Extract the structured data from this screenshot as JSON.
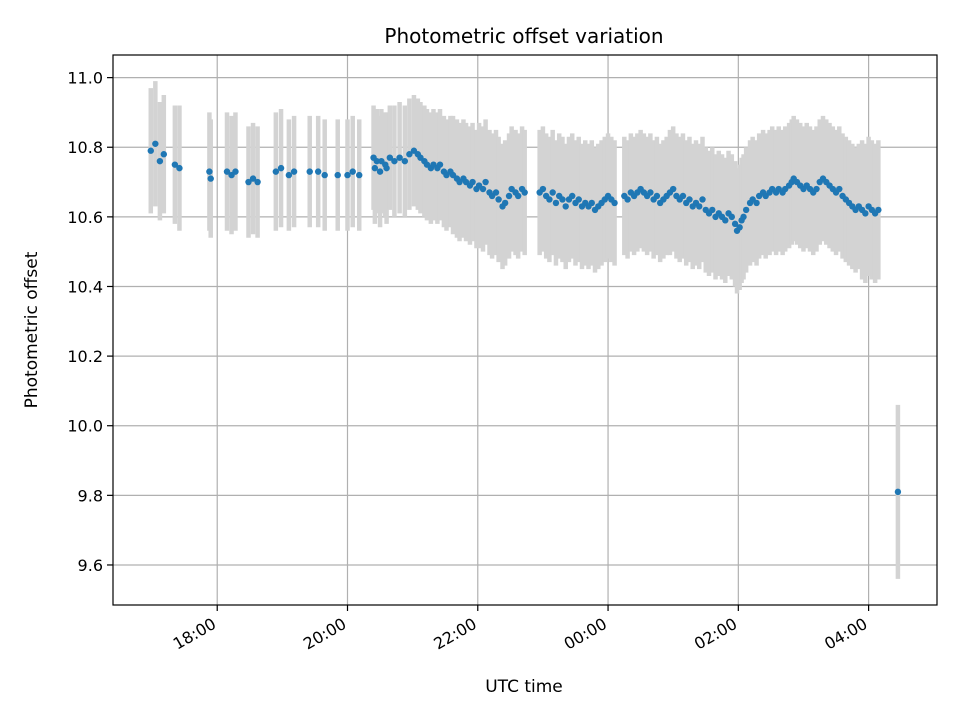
{
  "chart_data": {
    "type": "scatter",
    "title": "Photometric offset variation",
    "xlabel": "UTC time",
    "ylabel": "Photometric offset",
    "x_unit": "hours of UTC day (values ≥ 24 are next day)",
    "xlim": [
      16.4,
      29.05
    ],
    "ylim": [
      9.485,
      11.065
    ],
    "x_ticks": [
      18,
      20,
      22,
      24,
      26,
      28
    ],
    "x_tick_labels": [
      "18:00",
      "20:00",
      "22:00",
      "00:00",
      "02:00",
      "04:00"
    ],
    "y_ticks": [
      9.6,
      9.8,
      10.0,
      10.2,
      10.4,
      10.6,
      10.8,
      11.0
    ],
    "y_tick_labels": [
      "9.6",
      "9.8",
      "10.0",
      "10.2",
      "10.4",
      "10.6",
      "10.8",
      "11.0"
    ],
    "grid": true,
    "legend": "none",
    "colors": {
      "points": "#1f77b4",
      "errorbars": "#d3d3d3",
      "grid": "#b0b0b0"
    },
    "series": [
      {
        "points": [
          [
            16.98,
            10.79,
            0.18
          ],
          [
            17.05,
            10.81,
            0.18
          ],
          [
            17.12,
            10.76,
            0.17
          ],
          [
            17.18,
            10.78,
            0.17
          ],
          [
            17.35,
            10.75,
            0.17
          ],
          [
            17.42,
            10.74,
            0.18
          ],
          [
            17.88,
            10.73,
            0.17
          ],
          [
            17.9,
            10.71,
            0.17
          ],
          [
            18.15,
            10.73,
            0.17
          ],
          [
            18.22,
            10.72,
            0.17
          ],
          [
            18.28,
            10.73,
            0.17
          ],
          [
            18.48,
            10.7,
            0.16
          ],
          [
            18.55,
            10.71,
            0.16
          ],
          [
            18.62,
            10.7,
            0.16
          ],
          [
            18.9,
            10.73,
            0.17
          ],
          [
            18.98,
            10.74,
            0.17
          ],
          [
            19.1,
            10.72,
            0.16
          ],
          [
            19.18,
            10.73,
            0.16
          ],
          [
            19.42,
            10.73,
            0.16
          ],
          [
            19.55,
            10.73,
            0.16
          ],
          [
            19.65,
            10.72,
            0.16
          ],
          [
            19.85,
            10.72,
            0.16
          ],
          [
            20.0,
            10.72,
            0.16
          ],
          [
            20.08,
            10.73,
            0.16
          ],
          [
            20.18,
            10.72,
            0.16
          ],
          [
            20.42,
            10.74,
            0.16
          ],
          [
            20.5,
            10.73,
            0.16
          ],
          [
            20.6,
            10.74,
            0.16
          ],
          [
            20.4,
            10.77,
            0.15
          ],
          [
            20.45,
            10.76,
            0.15
          ],
          [
            20.52,
            10.76,
            0.15
          ],
          [
            20.58,
            10.75,
            0.15
          ],
          [
            20.65,
            10.77,
            0.15
          ],
          [
            20.72,
            10.76,
            0.16
          ],
          [
            20.8,
            10.77,
            0.16
          ],
          [
            20.88,
            10.76,
            0.16
          ],
          [
            20.95,
            10.78,
            0.16
          ],
          [
            21.02,
            10.79,
            0.16
          ],
          [
            21.08,
            10.78,
            0.16
          ],
          [
            21.12,
            10.77,
            0.16
          ],
          [
            21.18,
            10.76,
            0.16
          ],
          [
            21.22,
            10.75,
            0.16
          ],
          [
            21.28,
            10.74,
            0.16
          ],
          [
            21.32,
            10.75,
            0.16
          ],
          [
            21.38,
            10.74,
            0.16
          ],
          [
            21.42,
            10.75,
            0.16
          ],
          [
            21.48,
            10.73,
            0.16
          ],
          [
            21.52,
            10.72,
            0.16
          ],
          [
            21.58,
            10.73,
            0.16
          ],
          [
            21.62,
            10.72,
            0.17
          ],
          [
            21.68,
            10.71,
            0.17
          ],
          [
            21.72,
            10.7,
            0.17
          ],
          [
            21.78,
            10.71,
            0.17
          ],
          [
            21.82,
            10.7,
            0.17
          ],
          [
            21.88,
            10.69,
            0.17
          ],
          [
            21.92,
            10.7,
            0.17
          ],
          [
            21.98,
            10.68,
            0.17
          ],
          [
            22.02,
            10.69,
            0.18
          ],
          [
            22.08,
            10.68,
            0.18
          ],
          [
            22.12,
            10.7,
            0.18
          ],
          [
            22.18,
            10.67,
            0.18
          ],
          [
            22.22,
            10.66,
            0.18
          ],
          [
            22.28,
            10.67,
            0.18
          ],
          [
            22.32,
            10.65,
            0.18
          ],
          [
            22.38,
            10.63,
            0.18
          ],
          [
            22.42,
            10.64,
            0.18
          ],
          [
            22.48,
            10.66,
            0.18
          ],
          [
            22.52,
            10.68,
            0.18
          ],
          [
            22.58,
            10.67,
            0.18
          ],
          [
            22.62,
            10.66,
            0.18
          ],
          [
            22.68,
            10.68,
            0.18
          ],
          [
            22.72,
            10.67,
            0.18
          ],
          [
            22.95,
            10.67,
            0.18
          ],
          [
            23.0,
            10.68,
            0.18
          ],
          [
            23.05,
            10.66,
            0.18
          ],
          [
            23.1,
            10.65,
            0.18
          ],
          [
            23.15,
            10.67,
            0.18
          ],
          [
            23.2,
            10.64,
            0.18
          ],
          [
            23.25,
            10.66,
            0.18
          ],
          [
            23.3,
            10.65,
            0.18
          ],
          [
            23.35,
            10.63,
            0.18
          ],
          [
            23.4,
            10.65,
            0.18
          ],
          [
            23.45,
            10.66,
            0.18
          ],
          [
            23.5,
            10.64,
            0.18
          ],
          [
            23.55,
            10.65,
            0.18
          ],
          [
            23.6,
            10.63,
            0.18
          ],
          [
            23.65,
            10.64,
            0.18
          ],
          [
            23.7,
            10.63,
            0.18
          ],
          [
            23.75,
            10.64,
            0.18
          ],
          [
            23.8,
            10.62,
            0.18
          ],
          [
            23.85,
            10.63,
            0.18
          ],
          [
            23.9,
            10.64,
            0.18
          ],
          [
            23.95,
            10.65,
            0.18
          ],
          [
            24.0,
            10.66,
            0.18
          ],
          [
            24.05,
            10.65,
            0.18
          ],
          [
            24.1,
            10.64,
            0.18
          ],
          [
            24.25,
            10.66,
            0.17
          ],
          [
            24.3,
            10.65,
            0.17
          ],
          [
            24.35,
            10.67,
            0.17
          ],
          [
            24.4,
            10.66,
            0.17
          ],
          [
            24.45,
            10.67,
            0.17
          ],
          [
            24.5,
            10.68,
            0.17
          ],
          [
            24.55,
            10.67,
            0.17
          ],
          [
            24.6,
            10.66,
            0.17
          ],
          [
            24.65,
            10.67,
            0.17
          ],
          [
            24.7,
            10.65,
            0.17
          ],
          [
            24.75,
            10.66,
            0.17
          ],
          [
            24.8,
            10.64,
            0.17
          ],
          [
            24.85,
            10.65,
            0.17
          ],
          [
            24.9,
            10.66,
            0.17
          ],
          [
            24.95,
            10.67,
            0.18
          ],
          [
            25.0,
            10.68,
            0.18
          ],
          [
            25.05,
            10.66,
            0.18
          ],
          [
            25.1,
            10.65,
            0.18
          ],
          [
            25.15,
            10.66,
            0.18
          ],
          [
            25.2,
            10.64,
            0.18
          ],
          [
            25.25,
            10.65,
            0.18
          ],
          [
            25.3,
            10.63,
            0.18
          ],
          [
            25.35,
            10.64,
            0.18
          ],
          [
            25.4,
            10.63,
            0.18
          ],
          [
            25.45,
            10.65,
            0.18
          ],
          [
            25.5,
            10.62,
            0.18
          ],
          [
            25.55,
            10.61,
            0.18
          ],
          [
            25.6,
            10.62,
            0.18
          ],
          [
            25.65,
            10.6,
            0.18
          ],
          [
            25.7,
            10.61,
            0.18
          ],
          [
            25.75,
            10.6,
            0.18
          ],
          [
            25.8,
            10.59,
            0.18
          ],
          [
            25.85,
            10.61,
            0.18
          ],
          [
            25.9,
            10.6,
            0.18
          ],
          [
            25.95,
            10.58,
            0.18
          ],
          [
            25.98,
            10.56,
            0.18
          ],
          [
            26.02,
            10.57,
            0.18
          ],
          [
            26.05,
            10.59,
            0.18
          ],
          [
            26.08,
            10.6,
            0.18
          ],
          [
            26.12,
            10.62,
            0.18
          ],
          [
            26.18,
            10.64,
            0.18
          ],
          [
            26.22,
            10.65,
            0.18
          ],
          [
            26.28,
            10.64,
            0.18
          ],
          [
            26.32,
            10.66,
            0.18
          ],
          [
            26.38,
            10.67,
            0.18
          ],
          [
            26.42,
            10.66,
            0.18
          ],
          [
            26.48,
            10.67,
            0.18
          ],
          [
            26.52,
            10.68,
            0.18
          ],
          [
            26.58,
            10.67,
            0.18
          ],
          [
            26.62,
            10.68,
            0.18
          ],
          [
            26.68,
            10.67,
            0.18
          ],
          [
            26.72,
            10.68,
            0.18
          ],
          [
            26.78,
            10.69,
            0.18
          ],
          [
            26.82,
            10.7,
            0.18
          ],
          [
            26.85,
            10.71,
            0.18
          ],
          [
            26.9,
            10.7,
            0.18
          ],
          [
            26.95,
            10.69,
            0.18
          ],
          [
            27.0,
            10.68,
            0.18
          ],
          [
            27.05,
            10.69,
            0.18
          ],
          [
            27.1,
            10.68,
            0.18
          ],
          [
            27.15,
            10.67,
            0.18
          ],
          [
            27.2,
            10.68,
            0.18
          ],
          [
            27.25,
            10.7,
            0.18
          ],
          [
            27.3,
            10.71,
            0.18
          ],
          [
            27.35,
            10.7,
            0.18
          ],
          [
            27.4,
            10.69,
            0.18
          ],
          [
            27.45,
            10.68,
            0.18
          ],
          [
            27.5,
            10.67,
            0.18
          ],
          [
            27.55,
            10.68,
            0.18
          ],
          [
            27.6,
            10.66,
            0.18
          ],
          [
            27.65,
            10.65,
            0.18
          ],
          [
            27.7,
            10.64,
            0.18
          ],
          [
            27.75,
            10.63,
            0.18
          ],
          [
            27.8,
            10.62,
            0.18
          ],
          [
            27.85,
            10.63,
            0.18
          ],
          [
            27.9,
            10.62,
            0.2
          ],
          [
            27.95,
            10.61,
            0.2
          ],
          [
            28.0,
            10.63,
            0.2
          ],
          [
            28.05,
            10.62,
            0.2
          ],
          [
            28.1,
            10.61,
            0.2
          ],
          [
            28.15,
            10.62,
            0.2
          ],
          [
            28.45,
            9.81,
            0.25
          ]
        ]
      }
    ]
  }
}
